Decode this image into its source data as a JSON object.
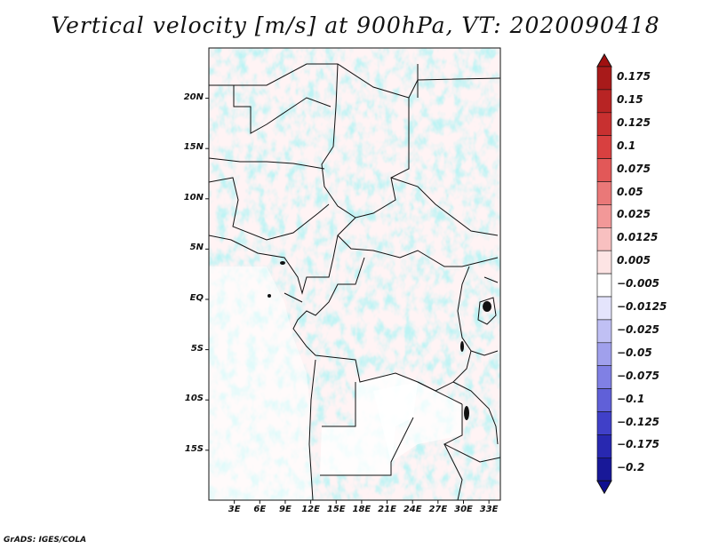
{
  "title": "Vertical velocity [m/s] at 900hPa, VT: 2020090418",
  "credit": "GrADS: IGES/COLA",
  "lat_ticks": [
    {
      "label": "20N",
      "value": 20
    },
    {
      "label": "15N",
      "value": 15
    },
    {
      "label": "10N",
      "value": 10
    },
    {
      "label": "5N",
      "value": 5
    },
    {
      "label": "EQ",
      "value": 0
    },
    {
      "label": "5S",
      "value": -5
    },
    {
      "label": "10S",
      "value": -10
    },
    {
      "label": "15S",
      "value": -15
    }
  ],
  "lon_ticks": [
    {
      "label": "3E",
      "value": 3
    },
    {
      "label": "6E",
      "value": 6
    },
    {
      "label": "9E",
      "value": 9
    },
    {
      "label": "12E",
      "value": 12
    },
    {
      "label": "15E",
      "value": 15
    },
    {
      "label": "18E",
      "value": 18
    },
    {
      "label": "21E",
      "value": 21
    },
    {
      "label": "24E",
      "value": 24
    },
    {
      "label": "27E",
      "value": 27
    },
    {
      "label": "30E",
      "value": 30
    },
    {
      "label": "33E",
      "value": 33
    }
  ],
  "colorbar": {
    "labels": [
      "0.175",
      "0.15",
      "0.125",
      "0.1",
      "0.075",
      "0.05",
      "0.025",
      "0.0125",
      "0.005",
      "−0.005",
      "−0.0125",
      "−0.025",
      "−0.05",
      "−0.075",
      "−0.1",
      "−0.125",
      "−0.175",
      "−0.2"
    ],
    "colors": [
      "#a81a1a",
      "#b82424",
      "#c83030",
      "#d84040",
      "#e25858",
      "#ea7878",
      "#f29898",
      "#f8c0c0",
      "#fde4e4",
      "#ffffff",
      "#e4e4fc",
      "#c0c0f4",
      "#a0a0ec",
      "#8080e4",
      "#6060d8",
      "#4040c8",
      "#2828b0",
      "#181898"
    ],
    "top_color": "#a01010",
    "bottom_color": "#101090"
  }
}
